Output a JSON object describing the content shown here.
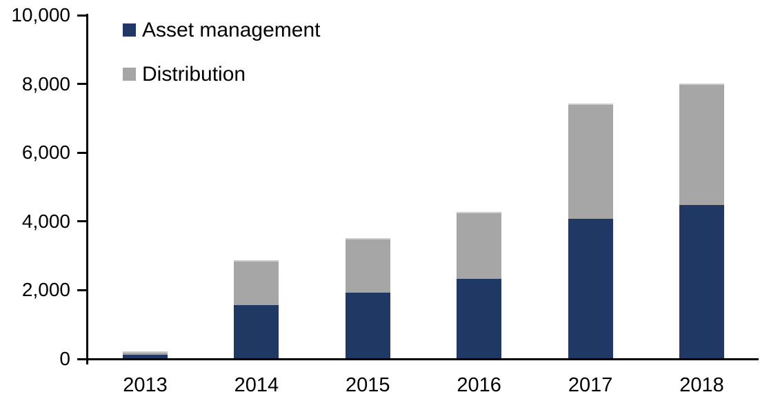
{
  "chart_data": {
    "type": "bar",
    "stacked": true,
    "categories": [
      "2013",
      "2014",
      "2015",
      "2016",
      "2017",
      "2018"
    ],
    "series": [
      {
        "name": "Asset management",
        "color": "#1F3864",
        "values": [
          100,
          1550,
          1900,
          2300,
          4050,
          4450
        ]
      },
      {
        "name": "Distribution",
        "color": "#A6A6A6",
        "values": [
          100,
          1300,
          1600,
          1950,
          3350,
          3550
        ]
      }
    ],
    "stack_totals": [
      200,
      2850,
      3500,
      4250,
      7400,
      8000
    ],
    "ylim": [
      0,
      10000
    ],
    "ytick_step": 2000,
    "ytick_labels": [
      "0",
      "2,000",
      "4,000",
      "6,000",
      "8,000",
      "10,000"
    ],
    "grid": false,
    "legend_position": "top-left-inside"
  },
  "colors": {
    "axis": "#000000",
    "text": "#000000",
    "background": "#FFFFFF"
  }
}
